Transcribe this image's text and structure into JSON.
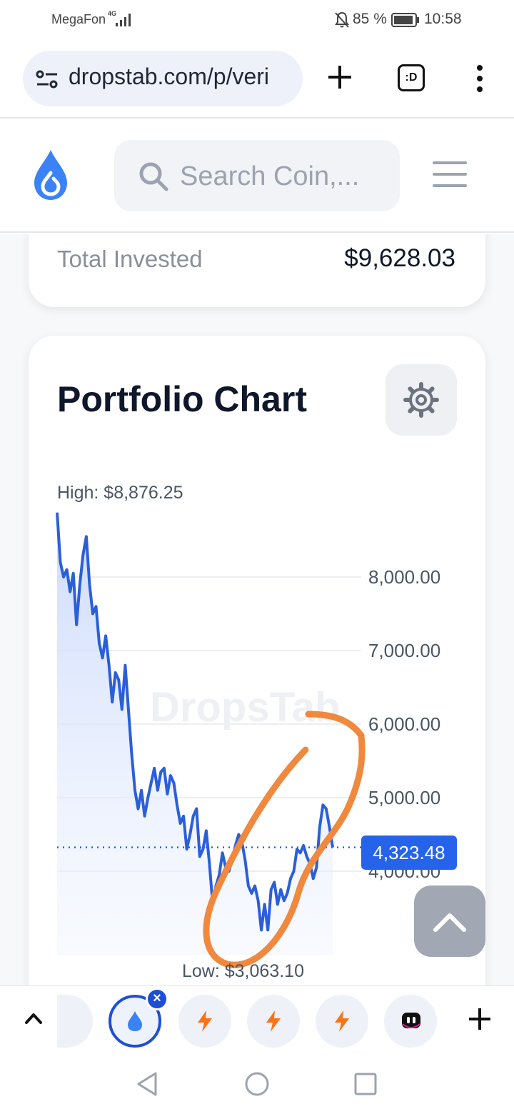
{
  "status_bar": {
    "carrier": "MegaFon",
    "network": "4G",
    "battery_percent": "85 %",
    "time": "10:58"
  },
  "browser": {
    "url": "dropstab.com/p/veri",
    "tabs_label": ":D"
  },
  "site": {
    "search_placeholder": "Search Coin,..."
  },
  "portfolio": {
    "total_invested_label": "Total Invested",
    "total_invested_value": "$9,628.03",
    "chart_title": "Portfolio Chart",
    "high_label": "High: $8,876.25",
    "low_label": "Low: $3,063.10",
    "current_value": "4,323.48",
    "watermark": "DropsTab"
  },
  "chart_data": {
    "type": "area",
    "ylim": [
      3000,
      8900
    ],
    "yticks": [
      "8,000.00",
      "7,000.00",
      "6,000.00",
      "5,000.00",
      "4,000.00"
    ],
    "ytick_values": [
      8000,
      7000,
      6000,
      5000,
      4000
    ],
    "values": [
      8876,
      8200,
      8000,
      8100,
      7800,
      8050,
      7350,
      7900,
      8300,
      8550,
      7900,
      7500,
      7600,
      7100,
      6900,
      7200,
      6800,
      6300,
      6700,
      6600,
      6200,
      6800,
      6200,
      5600,
      5100,
      4850,
      5100,
      4750,
      5000,
      5200,
      5400,
      5100,
      5350,
      5400,
      5050,
      5300,
      5200,
      4900,
      4650,
      4750,
      4300,
      4500,
      4750,
      4850,
      4200,
      4300,
      4550,
      4100,
      3550,
      3800,
      3950,
      4250,
      4050,
      4000,
      4150,
      4350,
      4500,
      4400,
      4150,
      3800,
      3700,
      3800,
      3600,
      3200,
      3550,
      3200,
      3750,
      3850,
      3550,
      3750,
      3600,
      3700,
      3900,
      4000,
      4300,
      4250,
      4350,
      4200,
      4100,
      3900,
      4050,
      4600,
      4900,
      4850,
      4600,
      4323
    ],
    "current": 4323.48
  },
  "bottom_strip": {
    "tabs": [
      "partial",
      "dropstab",
      "bolt",
      "bolt",
      "bolt",
      "app"
    ]
  },
  "colors": {
    "accent": "#2563eb",
    "line": "#2b5fd9",
    "annotation": "#f0883e",
    "logo": "#3b82f6"
  }
}
